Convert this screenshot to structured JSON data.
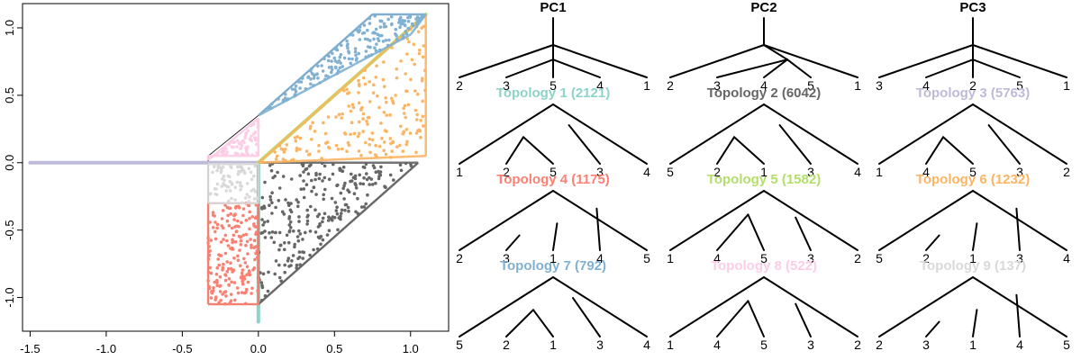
{
  "chart_data": [
    {
      "type": "scatter",
      "title": "",
      "xlabel": "",
      "ylabel": "",
      "xlim": [
        -1.55,
        1.25
      ],
      "ylim": [
        -1.25,
        1.18
      ],
      "x_ticks": [
        -1.5,
        -1.0,
        -0.5,
        0.0,
        0.5,
        1.0
      ],
      "x_tick_labels": [
        "-1.5",
        "-1.0",
        "-0.5",
        "0.0",
        "0.5",
        "1.0"
      ],
      "y_ticks": [
        -1.0,
        -0.5,
        0.0,
        0.5,
        1.0
      ],
      "y_tick_labels": [
        "-1.0",
        "-0.5",
        "0.0",
        "0.5",
        "1.0"
      ],
      "grid": false,
      "legend": "none",
      "series": [
        {
          "color": "#8dd3c7",
          "segment": {
            "x": [
              0.0,
              0.0
            ],
            "y": [
              -1.18,
              0.0
            ]
          }
        },
        {
          "color": "#bebada",
          "segment": {
            "x": [
              -1.5,
              0.0
            ],
            "y": [
              0.0,
              0.0
            ]
          }
        },
        {
          "color": "#666666",
          "region": {
            "x": [
              0.0,
              1.05,
              0.0
            ],
            "y": [
              0.0,
              0.0,
              -1.05
            ]
          },
          "count": 260,
          "seed": 11
        },
        {
          "color": "#fb8072",
          "region": {
            "x": [
              -0.33,
              0.0,
              0.0,
              -0.33
            ],
            "y": [
              -0.3,
              -0.3,
              -1.05,
              -1.05
            ]
          },
          "count": 200,
          "seed": 21
        },
        {
          "color": "#b3de69",
          "segment": {
            "x": [
              0.0,
              1.1
            ],
            "y": [
              0.0,
              1.1
            ]
          }
        },
        {
          "color": "#fdb462",
          "region": {
            "x": [
              0.0,
              1.1,
              1.1
            ],
            "y": [
              0.0,
              0.05,
              1.1
            ]
          },
          "count": 190,
          "seed": 31
        },
        {
          "color": "#80b1d3",
          "region": {
            "x": [
              0.0,
              0.75,
              1.1,
              1.0
            ],
            "y": [
              0.35,
              1.1,
              1.1,
              0.95
            ]
          },
          "count": 180,
          "seed": 41
        },
        {
          "color": "#fccde5",
          "region": {
            "x": [
              -0.33,
              0.0,
              0.0,
              -0.33
            ],
            "y": [
              0.02,
              0.33,
              0.05,
              0.05
            ]
          },
          "count": 60,
          "seed": 51
        },
        {
          "color": "#d9d9d9",
          "region": {
            "x": [
              -0.33,
              0.0,
              0.0,
              -0.33
            ],
            "y": [
              -0.3,
              -0.3,
              -0.01,
              -0.01
            ]
          },
          "count": 70,
          "seed": 61
        }
      ]
    },
    {
      "type": "diagram",
      "columns": [
        "PC1",
        "PC2",
        "PC3"
      ],
      "topologies": [
        {
          "label": "",
          "color": "#000000",
          "leaves": [
            "2",
            "3",
            "5",
            "4",
            "1"
          ],
          "shape": "a"
        },
        {
          "label": "",
          "color": "#000000",
          "leaves": [
            "2",
            "3",
            "4",
            "5",
            "1"
          ],
          "shape": "b"
        },
        {
          "label": "",
          "color": "#000000",
          "leaves": [
            "3",
            "4",
            "2",
            "5",
            "1"
          ],
          "shape": "c"
        },
        {
          "label": "Topology 1 (2121)",
          "color": "#8dd3c7",
          "leaves": [
            "1",
            "2",
            "5",
            "3",
            "4"
          ],
          "shape": "d"
        },
        {
          "label": "Topology 2 (6042)",
          "color": "#666666",
          "leaves": [
            "5",
            "2",
            "1",
            "3",
            "4"
          ],
          "shape": "d"
        },
        {
          "label": "Topology 3 (5763)",
          "color": "#bebada",
          "leaves": [
            "1",
            "4",
            "5",
            "3",
            "2"
          ],
          "shape": "d"
        },
        {
          "label": "Topology 4 (1175)",
          "color": "#fb8072",
          "leaves": [
            "2",
            "3",
            "1",
            "4",
            "5"
          ],
          "shape": "e"
        },
        {
          "label": "Topology 5 (1582)",
          "color": "#b3de69",
          "leaves": [
            "1",
            "4",
            "5",
            "3",
            "2"
          ],
          "shape": "f"
        },
        {
          "label": "Topology 6 (1232)",
          "color": "#fdb462",
          "leaves": [
            "5",
            "2",
            "1",
            "3",
            "4"
          ],
          "shape": "e"
        },
        {
          "label": "Topology 7 (792)",
          "color": "#80b1d3",
          "leaves": [
            "5",
            "2",
            "1",
            "3",
            "4"
          ],
          "shape": "g"
        },
        {
          "label": "Topology 8 (522)",
          "color": "#fccde5",
          "leaves": [
            "1",
            "4",
            "5",
            "3",
            "2"
          ],
          "shape": "f"
        },
        {
          "label": "Topology 9 (137)",
          "color": "#d9d9d9",
          "leaves": [
            "2",
            "3",
            "1",
            "4",
            "5"
          ],
          "shape": "e"
        }
      ]
    }
  ]
}
